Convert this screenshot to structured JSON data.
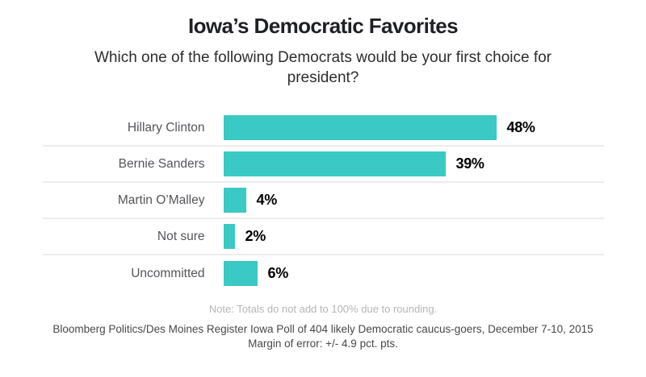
{
  "header": {
    "title": "Iowa’s Democratic Favorites",
    "subtitle": "Which one of the following Democrats would be your first choice for president?"
  },
  "chart_data": {
    "type": "bar",
    "orientation": "horizontal",
    "title": "Iowa’s Democratic Favorites",
    "subtitle": "Which one of the following Democrats would be your first choice for president?",
    "categories": [
      "Hillary Clinton",
      "Bernie Sanders",
      "Martin O’Malley",
      "Not sure",
      "Uncommitted"
    ],
    "values": [
      48,
      39,
      4,
      2,
      6
    ],
    "value_labels": [
      "48%",
      "39%",
      "4%",
      "2%",
      "6%"
    ],
    "unit": "%",
    "xlim": [
      0,
      50
    ],
    "grid": false,
    "legend": false,
    "bar_color": "#3ac9c4",
    "separator_color": "#ececec",
    "xlabel": "",
    "ylabel": ""
  },
  "footer": {
    "note": "Note: Totals do not add to 100% due to rounding.",
    "source_line1": "Bloomberg Politics/Des Moines Register Iowa Poll of 404 likely Democratic caucus-goers, December 7-10, 2015",
    "source_line2": "Margin of error: +/- 4.9 pct. pts."
  }
}
